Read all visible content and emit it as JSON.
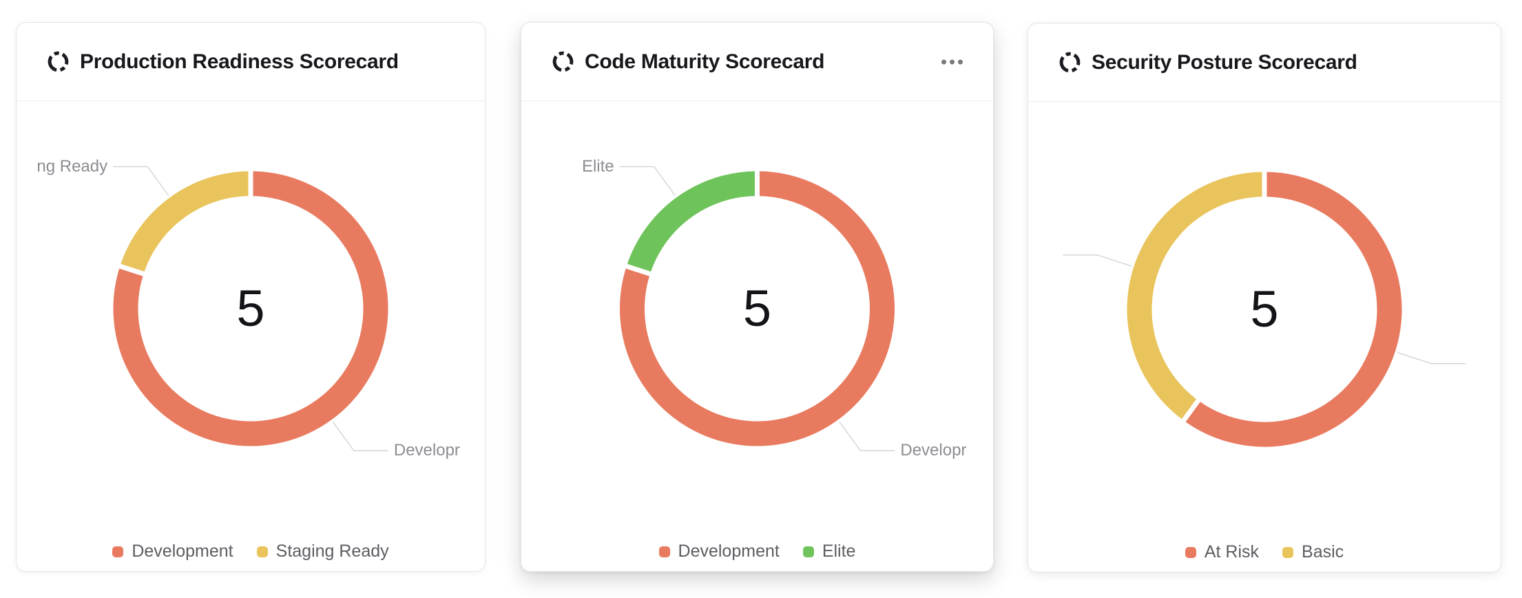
{
  "accent_colors": {
    "red": "#e87a5f",
    "yellow": "#e9c45c",
    "green": "#6fc35b"
  },
  "cards": [
    {
      "title": "Production Readiness Scorecard",
      "icon": "scorecard-donut-icon",
      "has_menu": false,
      "center_value": "5",
      "segments": [
        {
          "label": "Development",
          "value": 4,
          "color": "#e87a5f",
          "callout": "Developr"
        },
        {
          "label": "Staging Ready",
          "value": 1,
          "color": "#e9c45c",
          "callout": "ng Ready"
        }
      ]
    },
    {
      "title": "Code Maturity Scorecard",
      "icon": "scorecard-donut-icon",
      "has_menu": true,
      "menu_icon": "ellipsis-icon",
      "center_value": "5",
      "segments": [
        {
          "label": "Development",
          "value": 4,
          "color": "#e87a5f",
          "callout": "Developr"
        },
        {
          "label": "Elite",
          "value": 1,
          "color": "#6fc35b",
          "callout": "Elite"
        }
      ]
    },
    {
      "title": "Security Posture Scorecard",
      "icon": "scorecard-donut-icon",
      "has_menu": false,
      "center_value": "5",
      "segments": [
        {
          "label": "At Risk",
          "value": 3,
          "color": "#e87a5f",
          "callout": ""
        },
        {
          "label": "Basic",
          "value": 2,
          "color": "#e9c45c",
          "callout": ""
        }
      ]
    }
  ],
  "chart_data": [
    {
      "type": "pie",
      "donut": true,
      "title": "Production Readiness Scorecard",
      "center_label": "5",
      "slices": [
        {
          "label": "Development",
          "value": 4,
          "color": "#e87a5f"
        },
        {
          "label": "Staging Ready",
          "value": 1,
          "color": "#e9c45c"
        }
      ],
      "start_angle_deg": 90,
      "direction": "clockwise",
      "legend_position": "bottom",
      "visible_callout_labels": [
        "ng Ready",
        "Developr"
      ]
    },
    {
      "type": "pie",
      "donut": true,
      "title": "Code Maturity Scorecard",
      "center_label": "5",
      "slices": [
        {
          "label": "Development",
          "value": 4,
          "color": "#e87a5f"
        },
        {
          "label": "Elite",
          "value": 1,
          "color": "#6fc35b"
        }
      ],
      "start_angle_deg": 90,
      "direction": "clockwise",
      "legend_position": "bottom",
      "visible_callout_labels": [
        "Elite",
        "Developr"
      ]
    },
    {
      "type": "pie",
      "donut": true,
      "title": "Security Posture Scorecard",
      "center_label": "5",
      "slices": [
        {
          "label": "At Risk",
          "value": 3,
          "color": "#e87a5f"
        },
        {
          "label": "Basic",
          "value": 2,
          "color": "#e9c45c"
        }
      ],
      "start_angle_deg": 90,
      "direction": "clockwise",
      "legend_position": "bottom",
      "visible_callout_labels": []
    }
  ]
}
